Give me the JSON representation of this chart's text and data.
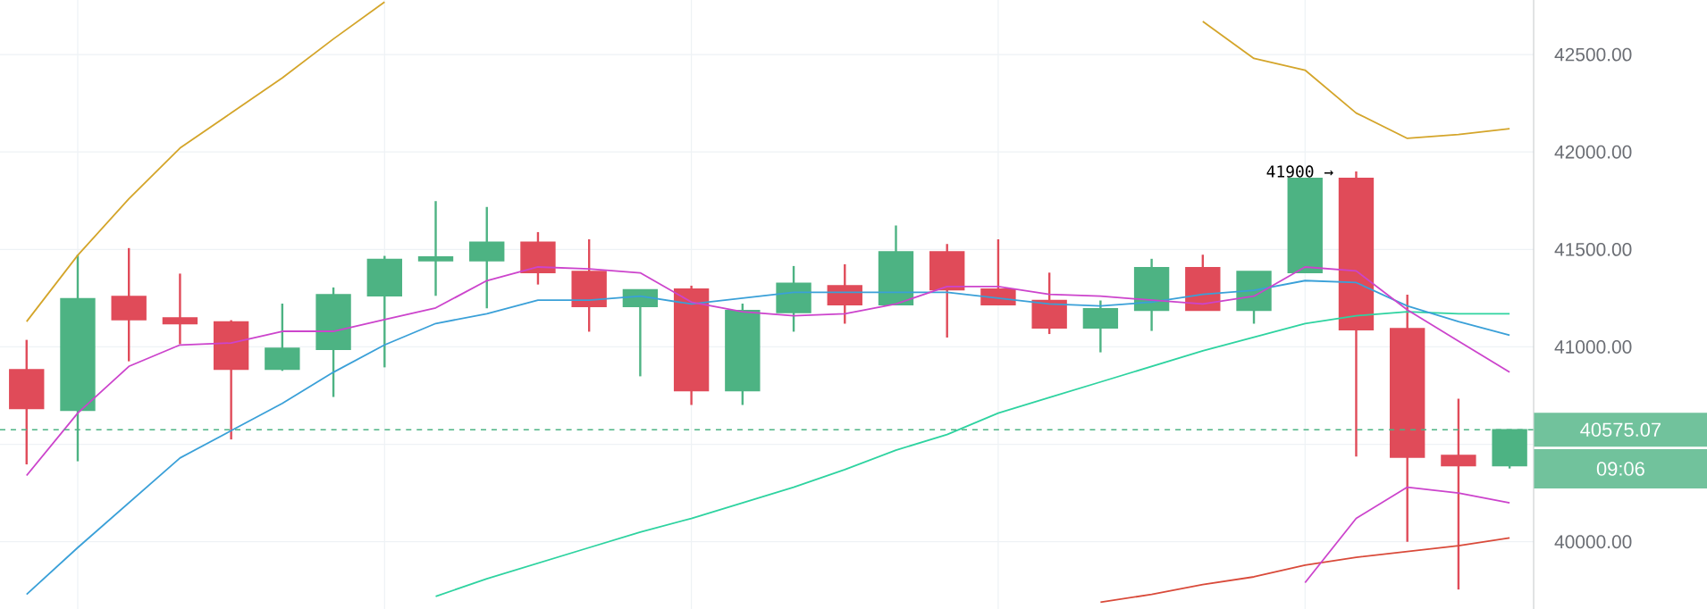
{
  "chart_data": {
    "type": "candlestick",
    "categories": [
      null,
      null,
      null,
      null,
      null,
      null,
      null,
      null,
      null,
      null,
      null,
      null,
      null,
      null,
      null,
      null,
      null,
      null,
      null,
      null,
      null,
      null,
      null,
      null,
      null,
      null,
      null,
      null,
      null,
      null
    ],
    "ohlc": [
      [
        40883,
        41036,
        40397,
        40684
      ],
      [
        40675,
        41473,
        40413,
        41247
      ],
      [
        41259,
        41507,
        40926,
        41140
      ],
      [
        41149,
        41376,
        41014,
        41119
      ],
      [
        41128,
        41137,
        40525,
        40886
      ],
      [
        40886,
        41222,
        40877,
        40993
      ],
      [
        40987,
        41305,
        40743,
        41268
      ],
      [
        41262,
        41467,
        40895,
        41449
      ],
      [
        41442,
        41748,
        41262,
        41461
      ],
      [
        41442,
        41718,
        41198,
        41537
      ],
      [
        41537,
        41589,
        41320,
        41381
      ],
      [
        41387,
        41552,
        41078,
        41207
      ],
      [
        41207,
        41293,
        40849,
        41293
      ],
      [
        41296,
        41314,
        40702,
        40776
      ],
      [
        40776,
        41222,
        40702,
        41186
      ],
      [
        41176,
        41415,
        41078,
        41326
      ],
      [
        41314,
        41424,
        41119,
        41216
      ],
      [
        41216,
        41623,
        41216,
        41488
      ],
      [
        41488,
        41528,
        41048,
        41293
      ],
      [
        41296,
        41552,
        41216,
        41216
      ],
      [
        41238,
        41381,
        41066,
        41097
      ],
      [
        41097,
        41238,
        40972,
        41195
      ],
      [
        41188,
        41452,
        41082,
        41406
      ],
      [
        41406,
        41473,
        41188,
        41188
      ],
      [
        41188,
        41387,
        41119,
        41387
      ],
      [
        41381,
        41864,
        41381,
        41864
      ],
      [
        41864,
        41900,
        40437,
        41088
      ],
      [
        41094,
        41268,
        40000,
        40434
      ],
      [
        40443,
        40734,
        39755,
        40391
      ],
      [
        40391,
        40575,
        40376,
        40575
      ]
    ],
    "colors": [
      "#e04b59",
      "#4db383",
      "#e04b59",
      "#e04b59",
      "#e04b59",
      "#4db383",
      "#4db383",
      "#4db383",
      "#4db383",
      "#4db383",
      "#e04b59",
      "#e04b59",
      "#4db383",
      "#e04b59",
      "#4db383",
      "#4db383",
      "#e04b59",
      "#4db383",
      "#e04b59",
      "#e04b59",
      "#e04b59",
      "#4db383",
      "#4db383",
      "#e04b59",
      "#4db383",
      "#4db383",
      "#e04b59",
      "#e04b59",
      "#e04b59",
      "#4db383"
    ],
    "series": [
      {
        "type": "line",
        "color": "#d4a52a",
        "values": [
          41130,
          41470,
          41760,
          42020,
          42200,
          42380,
          42580,
          42770,
          null,
          null,
          null,
          null,
          null,
          null,
          null,
          null,
          null,
          null,
          null,
          null,
          null,
          null,
          null,
          42670,
          42480,
          42420,
          42200,
          42070,
          42090,
          42120
        ]
      },
      {
        "type": "line",
        "color": "#2ed3a0",
        "values": [
          null,
          null,
          null,
          null,
          null,
          null,
          null,
          null,
          39720,
          39810,
          39890,
          39970,
          40050,
          40120,
          40200,
          40280,
          40370,
          40470,
          40550,
          40660,
          40740,
          40820,
          40900,
          40980,
          41050,
          41120,
          41160,
          41180,
          41170,
          41170
        ]
      },
      {
        "type": "line",
        "color": "#3aa0d8",
        "values": [
          39730,
          39970,
          40200,
          40430,
          40570,
          40710,
          40870,
          41010,
          41120,
          41170,
          41240,
          41240,
          41260,
          41220,
          41250,
          41280,
          41280,
          41280,
          41280,
          41250,
          41220,
          41210,
          41230,
          41270,
          41290,
          41340,
          41330,
          41210,
          41130,
          41060
        ]
      },
      {
        "type": "line",
        "color": "#cc44cc",
        "values": [
          40340,
          40660,
          40900,
          41010,
          41020,
          41080,
          41080,
          41140,
          41200,
          41340,
          41410,
          41400,
          41380,
          41230,
          41180,
          41160,
          41170,
          41220,
          41310,
          41310,
          41270,
          41260,
          41240,
          41220,
          41260,
          41410,
          41390,
          41190,
          41030,
          40870
        ]
      },
      {
        "type": "line",
        "color": "#d94a3a",
        "values": [
          null,
          null,
          null,
          null,
          null,
          null,
          null,
          null,
          null,
          null,
          null,
          null,
          null,
          null,
          null,
          null,
          null,
          null,
          null,
          null,
          null,
          39690,
          39730,
          39780,
          39820,
          39880,
          39920,
          39950,
          39980,
          40020
        ]
      },
      {
        "type": "line",
        "color": "#cc44cc",
        "values": [
          null,
          null,
          null,
          null,
          null,
          null,
          null,
          null,
          null,
          null,
          null,
          null,
          null,
          null,
          null,
          null,
          null,
          null,
          null,
          null,
          null,
          null,
          null,
          null,
          null,
          39790,
          40120,
          40280,
          40250,
          40200
        ]
      }
    ],
    "ylim": [
      39655,
      42780
    ],
    "yticks": [
      {
        "value": 40000,
        "label": "40000.00"
      },
      {
        "value": 40500,
        "label": null
      },
      {
        "value": 41000,
        "label": "41000.00"
      },
      {
        "value": 41500,
        "label": "41500.00"
      },
      {
        "value": 42000,
        "label": "42000.00"
      },
      {
        "value": 42500,
        "label": "42500.00"
      }
    ],
    "tick_labels": "y",
    "grid": true,
    "ref_lines": [
      {
        "axis": "y",
        "value": 40575.07,
        "label": "40575.07",
        "color": "#4db383",
        "line_style": "dashed"
      }
    ],
    "annotations": [
      {
        "text": "41900 →",
        "y": 41900
      },
      "09:06"
    ]
  }
}
